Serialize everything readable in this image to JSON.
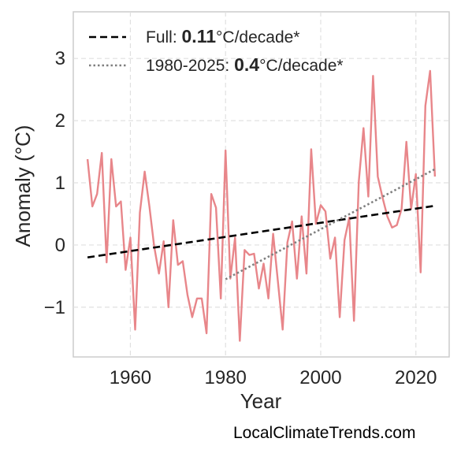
{
  "chart_data": {
    "type": "line",
    "xlabel": "Year",
    "ylabel": "Anomaly (°C)",
    "xlim": [
      1948,
      2027
    ],
    "ylim": [
      -1.8,
      3.75
    ],
    "x_ticks": [
      1960,
      1980,
      2000,
      2020
    ],
    "y_ticks": [
      3,
      2,
      1,
      0,
      -1
    ],
    "y_tick_labels": [
      "3",
      "2",
      "1",
      "0",
      "−1"
    ],
    "grid": true,
    "legend_placement": "top-left",
    "series": [
      {
        "role": "annual-anomaly",
        "color": "#e8868a",
        "style": "solid",
        "x": [
          1951,
          1952,
          1953,
          1954,
          1955,
          1956,
          1957,
          1958,
          1959,
          1960,
          1961,
          1962,
          1963,
          1964,
          1965,
          1966,
          1967,
          1968,
          1969,
          1970,
          1971,
          1972,
          1973,
          1974,
          1975,
          1976,
          1977,
          1978,
          1979,
          1980,
          1981,
          1982,
          1983,
          1984,
          1985,
          1986,
          1987,
          1988,
          1989,
          1990,
          1991,
          1992,
          1993,
          1994,
          1995,
          1996,
          1997,
          1998,
          1999,
          2000,
          2001,
          2002,
          2003,
          2004,
          2005,
          2006,
          2007,
          2008,
          2009,
          2010,
          2011,
          2012,
          2013,
          2014,
          2015,
          2016,
          2017,
          2018,
          2019,
          2020,
          2021,
          2022,
          2023,
          2024
        ],
        "y": [
          1.38,
          0.62,
          0.82,
          1.48,
          -0.28,
          1.38,
          0.62,
          0.7,
          -0.4,
          0.12,
          -1.36,
          0.52,
          1.18,
          0.62,
          -0.02,
          -0.46,
          0.06,
          -1.0,
          0.4,
          -0.32,
          -0.26,
          -0.8,
          -1.16,
          -0.86,
          -0.86,
          -1.42,
          0.82,
          0.6,
          -0.86,
          1.52,
          -0.54,
          0.12,
          -1.54,
          -0.08,
          -0.16,
          -0.14,
          -0.7,
          -0.3,
          -0.86,
          0.18,
          -0.58,
          -1.36,
          0.04,
          0.38,
          -0.54,
          0.46,
          -0.46,
          1.54,
          0.34,
          0.64,
          0.54,
          -0.22,
          0.12,
          -1.16,
          0.08,
          0.44,
          -1.22,
          1.02,
          1.88,
          0.78,
          2.72,
          1.1,
          0.76,
          0.46,
          0.28,
          0.32,
          0.58,
          1.66,
          0.58,
          1.14,
          -0.44,
          2.24,
          2.8,
          1.1
        ]
      },
      {
        "role": "full-trend",
        "color": "#000000",
        "style": "dashed",
        "x": [
          1951,
          2024
        ],
        "y": [
          -0.2,
          0.63
        ]
      },
      {
        "role": "recent-trend",
        "color": "#7f7f7f",
        "style": "dotted",
        "x": [
          1980,
          2024
        ],
        "y": [
          -0.55,
          1.22
        ]
      }
    ],
    "legend": [
      {
        "prefix": "Full: ",
        "value": "0.11",
        "suffix": "°C/decade*",
        "color": "#000000",
        "style": "dashed"
      },
      {
        "prefix": "1980-2025: ",
        "value": "0.4",
        "suffix": "°C/decade*",
        "color": "#7f7f7f",
        "style": "dotted"
      }
    ]
  },
  "watermark": "LocalClimateTrends.com"
}
